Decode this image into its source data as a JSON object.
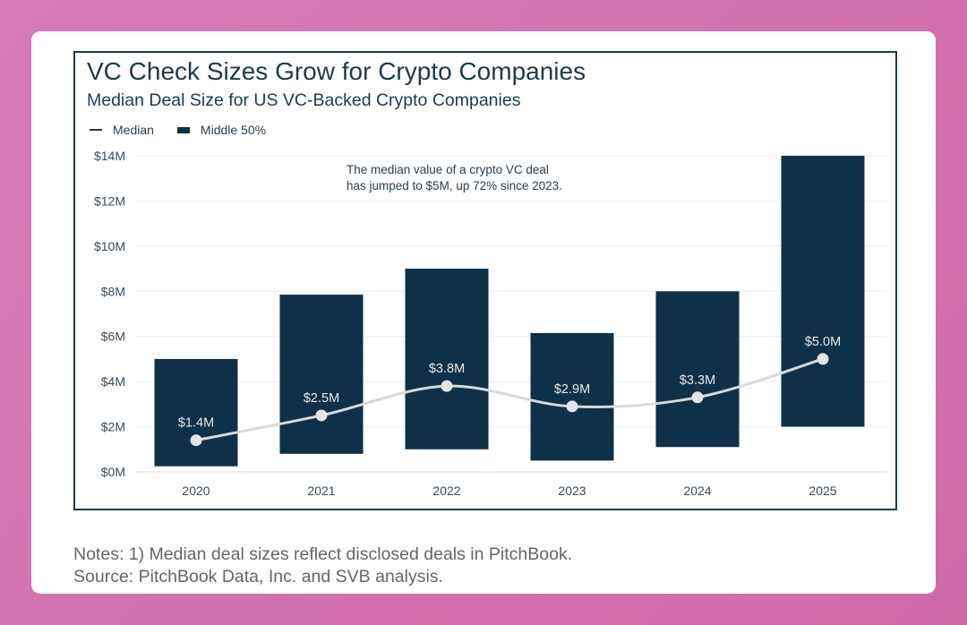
{
  "chart_data": {
    "type": "bar",
    "title": "VC Check Sizes Grow for Crypto Companies",
    "subtitle": "Median Deal Size for US VC-Backed Crypto Companies",
    "categories": [
      "2020",
      "2021",
      "2022",
      "2023",
      "2024",
      "2025"
    ],
    "series": [
      {
        "name": "Median",
        "type": "line",
        "values": [
          1.4,
          2.5,
          3.8,
          2.9,
          3.3,
          5.0
        ],
        "labels": [
          "$1.4M",
          "$2.5M",
          "$3.8M",
          "$2.9M",
          "$3.3M",
          "$5.0M"
        ],
        "color": "#d9d9d9"
      },
      {
        "name": "Middle 50%",
        "type": "floating-bar",
        "low": [
          0.25,
          0.8,
          1.0,
          0.5,
          1.1,
          2.0
        ],
        "high": [
          5.0,
          7.85,
          9.0,
          6.15,
          8.0,
          14.0
        ],
        "color": "#0e3149"
      }
    ],
    "yticks": [
      "$0M",
      "$2M",
      "$4M",
      "$6M",
      "$8M",
      "$10M",
      "$12M",
      "$14M"
    ],
    "ylim": [
      0,
      14
    ],
    "yunit": "$M",
    "grid": true,
    "legend": "top-left",
    "annotation": [
      "The median value of a crypto VC deal",
      "has jumped to $5M, up 72% since 2023."
    ]
  },
  "notes": [
    "Notes: 1) Median deal sizes reflect disclosed deals in PitchBook.",
    "Source: PitchBook Data, Inc. and SVB analysis."
  ]
}
